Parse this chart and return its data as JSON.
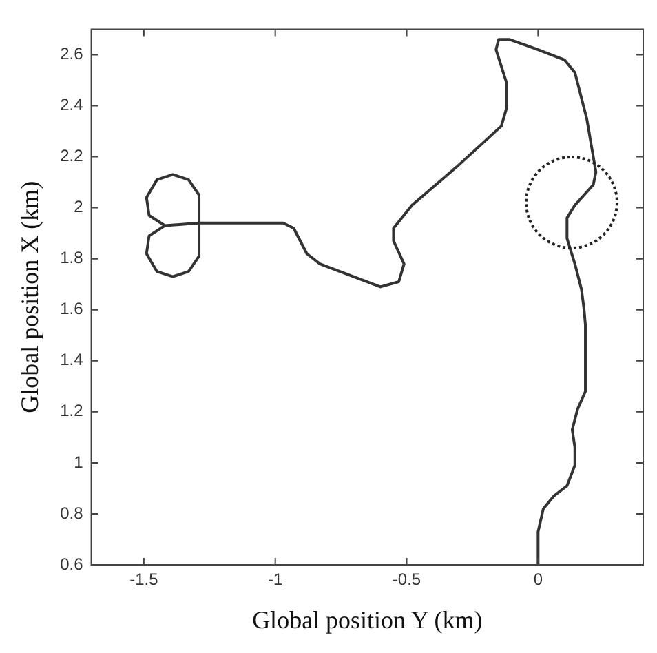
{
  "chart_data": {
    "type": "line",
    "xlabel": "Global position Y (km)",
    "ylabel": "Global position X (km)",
    "xlim": [
      -1.7,
      0.4
    ],
    "xticks": [
      -1.5,
      -1,
      -0.5,
      0
    ],
    "ylim": [
      0.6,
      2.7
    ],
    "yticks": [
      0.6,
      0.8,
      1,
      1.2,
      1.4,
      1.6,
      1.8,
      2,
      2.2,
      2.4,
      2.6
    ],
    "grid": false,
    "legend": false,
    "marker": "none",
    "line_style": "solid",
    "series": [
      {
        "color": "#333333",
        "x": [
          0,
          0,
          0.02,
          0.06,
          0.11,
          0.14,
          0.14,
          0.13,
          0.15,
          0.18,
          0.18,
          0.175,
          0.165,
          0.14,
          0.11,
          0.11,
          0.14,
          0.21,
          0.22,
          0.185,
          0.14,
          0.1,
          0,
          -0.11,
          -0.15,
          -0.16,
          -0.12,
          -0.12,
          -0.14,
          -0.31,
          -0.48,
          -0.55,
          -0.55,
          -0.51,
          -0.53,
          -0.6,
          -0.83,
          -0.88,
          -0.93,
          -0.97,
          -1.29,
          -1.42,
          -1.48,
          -1.49,
          -1.45,
          -1.39,
          -1.33,
          -1.29,
          -1.29,
          -1.29,
          -1.33,
          -1.39,
          -1.45,
          -1.49,
          -1.48,
          -1.42
        ],
        "values": [
          0.6,
          0.73,
          0.82,
          0.87,
          0.91,
          0.99,
          1.06,
          1.13,
          1.21,
          1.28,
          1.54,
          1.6,
          1.68,
          1.78,
          1.88,
          1.96,
          2.01,
          2.09,
          2.14,
          2.35,
          2.53,
          2.58,
          2.62,
          2.66,
          2.66,
          2.62,
          2.49,
          2.39,
          2.32,
          2.16,
          2.01,
          1.92,
          1.87,
          1.78,
          1.71,
          1.69,
          1.78,
          1.82,
          1.92,
          1.94,
          1.94,
          1.93,
          1.97,
          2.04,
          2.11,
          2.13,
          2.11,
          2.05,
          1.94,
          1.81,
          1.75,
          1.73,
          1.75,
          1.82,
          1.89,
          1.93
        ]
      }
    ]
  }
}
